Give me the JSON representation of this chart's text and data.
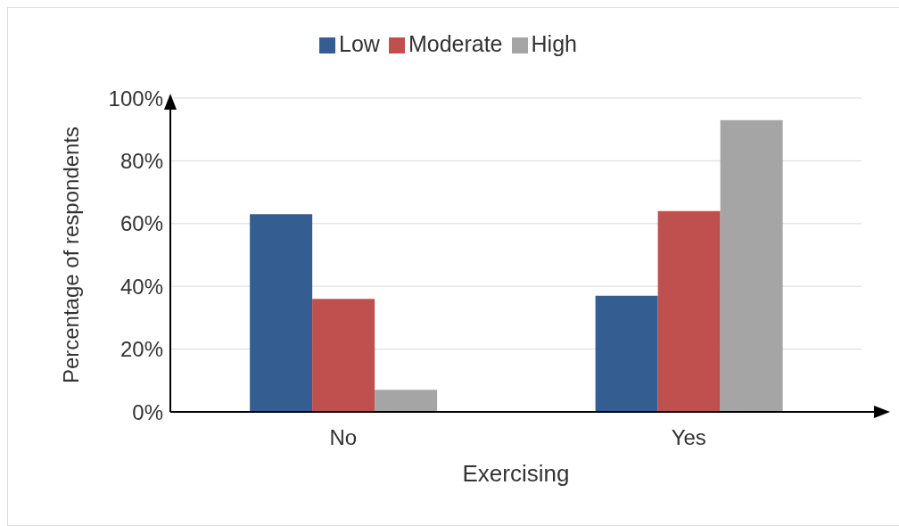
{
  "chart_data": {
    "type": "bar",
    "xlabel": "Exercising",
    "ylabel": "Percentage of respondents",
    "categories": [
      "No",
      "Yes"
    ],
    "series": [
      {
        "name": "Low",
        "color": "#345d91",
        "values": [
          63,
          37
        ]
      },
      {
        "name": "Moderate",
        "color": "#c0504d",
        "values": [
          36,
          64
        ]
      },
      {
        "name": "High",
        "color": "#a5a5a5",
        "values": [
          7,
          93
        ]
      }
    ],
    "ylim": [
      0,
      100
    ],
    "yticks": [
      {
        "value": 0,
        "label": "0%"
      },
      {
        "value": 20,
        "label": "20%"
      },
      {
        "value": 40,
        "label": "40%"
      },
      {
        "value": 60,
        "label": "60%"
      },
      {
        "value": 80,
        "label": "80%"
      },
      {
        "value": 100,
        "label": "100%"
      }
    ],
    "grid": "y",
    "legend": "top"
  }
}
